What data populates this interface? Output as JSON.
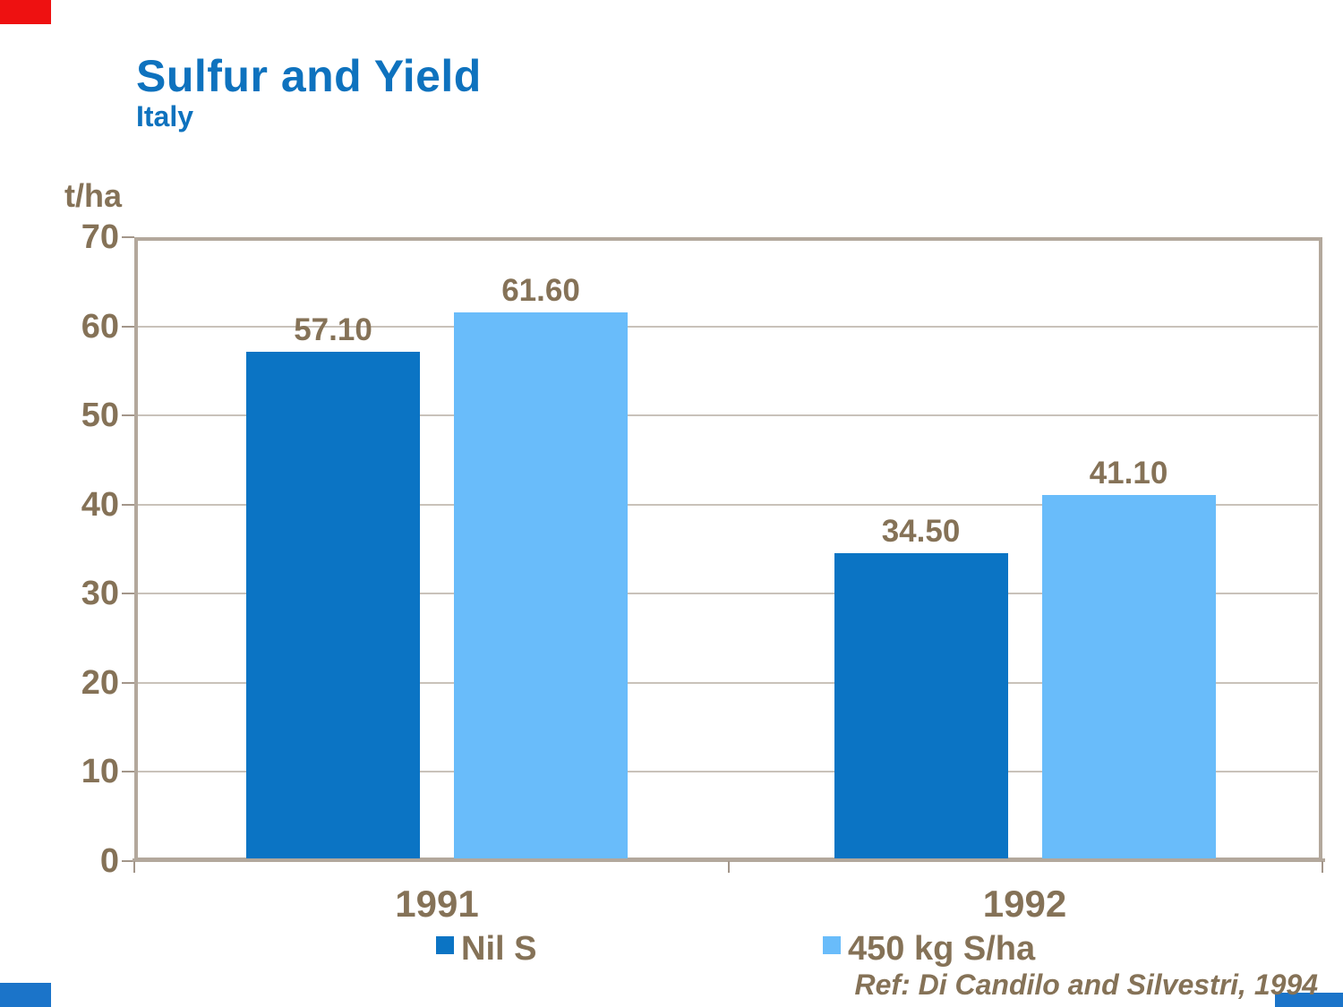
{
  "slide": {
    "title": "Sulfur and Yield",
    "subtitle": "Italy",
    "unit_label": "t/ha",
    "ref": "Ref: Di Candilo and Silvestri, 1994"
  },
  "colors": {
    "title_blue": "#0e72be",
    "series_nil_s": "#0b74c4",
    "series_450": "#69bcfa",
    "axis_text_brown": "#857257",
    "frame_tan": "#b3a89c",
    "gridline": "#c9c2ba",
    "corner_red": "#ee1111",
    "corner_blue": "#1b74c9"
  },
  "chart_data": {
    "type": "bar",
    "title": "Sulfur and Yield",
    "subtitle": "Italy",
    "ylabel": "t/ha",
    "xlabel": "",
    "ylim": [
      0,
      70
    ],
    "yticks": [
      0,
      10,
      20,
      30,
      40,
      50,
      60,
      70
    ],
    "grid": "horizontal",
    "legend_position": "bottom",
    "categories": [
      "1991",
      "1992"
    ],
    "series": [
      {
        "name": "Nil S",
        "color": "#0b74c4",
        "values": [
          57.1,
          34.5
        ],
        "labels": [
          "57.10",
          "34.50"
        ]
      },
      {
        "name": "450 kg S/ha",
        "color": "#69bcfa",
        "values": [
          61.6,
          41.1
        ],
        "labels": [
          "61.60",
          "41.10"
        ]
      }
    ],
    "annotation": "Ref: Di Candilo and Silvestri, 1994"
  }
}
